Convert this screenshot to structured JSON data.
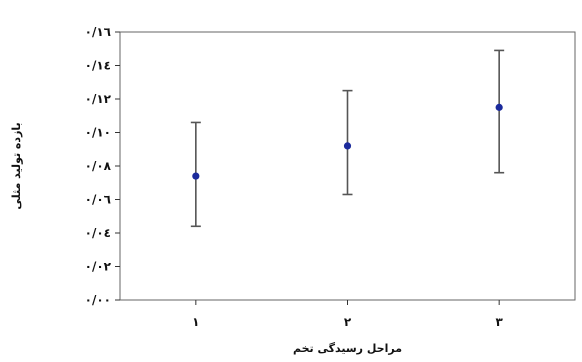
{
  "chart_data": {
    "type": "scatter",
    "title": "",
    "xlabel": "مراحل رسیدگی تخم",
    "ylabel": "بازده تولید مثلی",
    "categories": [
      "۱",
      "۲",
      "۳"
    ],
    "y_ticks": [
      {
        "value": 0.0,
        "label": "۰/۰۰"
      },
      {
        "value": 0.02,
        "label": "۰/۰۲"
      },
      {
        "value": 0.04,
        "label": "۰/۰٤"
      },
      {
        "value": 0.06,
        "label": "۰/۰٦"
      },
      {
        "value": 0.08,
        "label": "۰/۰۸"
      },
      {
        "value": 0.1,
        "label": "۰/۱۰"
      },
      {
        "value": 0.12,
        "label": "۰/۱۲"
      },
      {
        "value": 0.14,
        "label": "۰/۱٤"
      },
      {
        "value": 0.16,
        "label": "۰/۱٦"
      }
    ],
    "ylim": [
      0,
      0.16
    ],
    "grid": false,
    "series": [
      {
        "values": [
          0.074,
          0.092,
          0.115
        ],
        "lower": [
          0.044,
          0.063,
          0.076
        ],
        "upper": [
          0.106,
          0.125,
          0.149
        ]
      }
    ],
    "colors": {
      "point": "#1b2a9c",
      "errorbar": "#555555",
      "frame": "#666666"
    }
  }
}
